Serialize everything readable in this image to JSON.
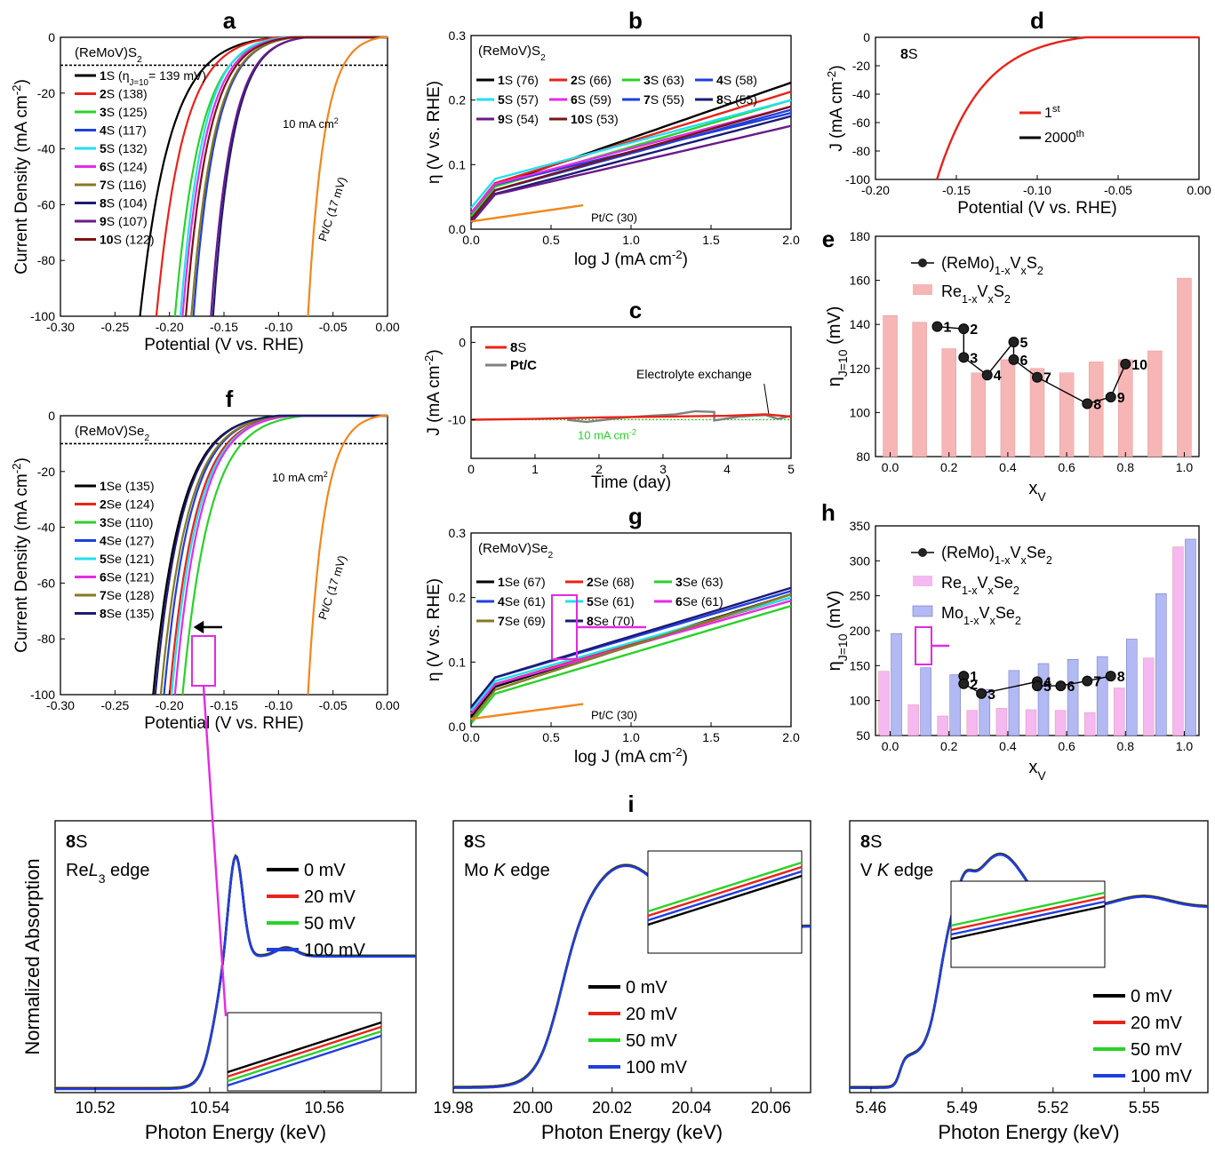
{
  "figure_title": "",
  "colors": {
    "black": "#000000",
    "red": "#e8231a",
    "green": "#29d229",
    "blue": "#1f3fe0",
    "cyan": "#20e0ef",
    "magenta": "#e62be6",
    "olive": "#857a22",
    "navy": "#1b1b73",
    "purple": "#6a1a8a",
    "maroon": "#7a1414",
    "orange": "#f2861c",
    "gray": "#808080",
    "bar_pink": "#f6b6b6",
    "bar_violet": "#f5b8f0",
    "bar_blue": "#b3b9f2"
  },
  "chart_data": [
    {
      "id": "a",
      "panel_label": "a",
      "type": "line",
      "header": "(ReMoV)S",
      "header_sub": "2",
      "xlabel": "Potential (V vs. RHE)",
      "ylabel": "Current Density (mA cm",
      "ylabel_sup": "-2",
      "ylabel_tail": ")",
      "xlim": [
        -0.3,
        0.0
      ],
      "ylim": [
        -100,
        0
      ],
      "xticks": [
        "-0.30",
        "-0.25",
        "-0.20",
        "-0.15",
        "-0.10",
        "-0.05",
        "0.00"
      ],
      "yticks": [
        "-100",
        "-80",
        "-60",
        "-40",
        "-20",
        "0"
      ],
      "ref_line_label": "10 mA cm",
      "ref_line_label_sup": "2",
      "ref_curve_label": "Pt/C (17 mV)",
      "legend_first_note": "(η",
      "legend_first_note_sub": "J=10",
      "legend_first_note_tail": "= 139 mV)",
      "series": [
        {
          "name": "1",
          "suffix": "S",
          "note": "",
          "color": "black",
          "onset": -0.1,
          "x100": -0.227
        },
        {
          "name": "2",
          "suffix": "S",
          "note": "(138)",
          "color": "red",
          "onset": -0.1,
          "x100": -0.212
        },
        {
          "name": "3",
          "suffix": "S",
          "note": "(125)",
          "color": "green",
          "onset": -0.09,
          "x100": -0.195
        },
        {
          "name": "4",
          "suffix": "S",
          "note": "(117)",
          "color": "blue",
          "onset": -0.085,
          "x100": -0.178
        },
        {
          "name": "5",
          "suffix": "S",
          "note": "(132)",
          "color": "cyan",
          "onset": -0.095,
          "x100": -0.19
        },
        {
          "name": "6",
          "suffix": "S",
          "note": "(124)",
          "color": "magenta",
          "onset": -0.09,
          "x100": -0.188
        },
        {
          "name": "7",
          "suffix": "S",
          "note": "(116)",
          "color": "olive",
          "onset": -0.085,
          "x100": -0.18
        },
        {
          "name": "8",
          "suffix": "S",
          "note": "(104)",
          "color": "navy",
          "onset": -0.075,
          "x100": -0.16
        },
        {
          "name": "9",
          "suffix": "S",
          "note": "(107)",
          "color": "purple",
          "onset": -0.075,
          "x100": -0.162
        },
        {
          "name": "10",
          "suffix": "S",
          "note": "(122)",
          "color": "maroon",
          "onset": -0.088,
          "x100": -0.185
        },
        {
          "name": "Pt/C",
          "suffix": "",
          "note": "",
          "color": "orange",
          "onset": -0.005,
          "x100": -0.073
        }
      ]
    },
    {
      "id": "b",
      "panel_label": "b",
      "type": "line",
      "header": "(ReMoV)S",
      "header_sub": "2",
      "xlabel": "log J (mA cm",
      "xlabel_sup": "-2",
      "xlabel_tail": ")",
      "ylabel": "η (V vs. RHE)",
      "xlim": [
        0.0,
        2.0
      ],
      "ylim": [
        0.0,
        0.3
      ],
      "xticks": [
        "0.0",
        "0.5",
        "1.0",
        "1.5",
        "2.0"
      ],
      "yticks": [
        "0.0",
        "0.1",
        "0.2",
        "0.3"
      ],
      "ref_curve_label": "Pt/C (30)",
      "series": [
        {
          "name": "1",
          "suffix": "S",
          "note": "(76)",
          "color": "black",
          "y0": 0.055,
          "y2": 0.227
        },
        {
          "name": "2",
          "suffix": "S",
          "note": "(66)",
          "color": "red",
          "y0": 0.06,
          "y2": 0.213
        },
        {
          "name": "3",
          "suffix": "S",
          "note": "(63)",
          "color": "green",
          "y0": 0.055,
          "y2": 0.2
        },
        {
          "name": "4",
          "suffix": "S",
          "note": "(58)",
          "color": "blue",
          "y0": 0.06,
          "y2": 0.18
        },
        {
          "name": "5",
          "suffix": "S",
          "note": "(57)",
          "color": "cyan",
          "y0": 0.068,
          "y2": 0.2
        },
        {
          "name": "6",
          "suffix": "S",
          "note": "(59)",
          "color": "magenta",
          "y0": 0.06,
          "y2": 0.19
        },
        {
          "name": "7",
          "suffix": "S",
          "note": "(55)",
          "color": "blue",
          "y0": 0.05,
          "y2": 0.185
        },
        {
          "name": "8",
          "suffix": "S",
          "note": "(55)",
          "color": "navy",
          "y0": 0.045,
          "y2": 0.175
        },
        {
          "name": "9",
          "suffix": "S",
          "note": "(54)",
          "color": "purple",
          "y0": 0.045,
          "y2": 0.16
        },
        {
          "name": "10",
          "suffix": "S",
          "note": "(53)",
          "color": "maroon",
          "y0": 0.05,
          "y2": 0.19
        },
        {
          "name": "Pt/C",
          "suffix": "",
          "note": "",
          "color": "orange",
          "x": [
            0.0,
            0.7
          ],
          "y": [
            0.012,
            0.037
          ]
        }
      ]
    },
    {
      "id": "c",
      "panel_label": "c",
      "type": "line",
      "xlabel": "Time (day)",
      "ylabel": "J (mA cm",
      "ylabel_sup": "-2",
      "ylabel_tail": ")",
      "xlim": [
        0,
        5
      ],
      "ylim": [
        -15,
        2
      ],
      "xticks": [
        "0",
        "1",
        "2",
        "3",
        "4",
        "5"
      ],
      "yticks": [
        "-10",
        "0"
      ],
      "annotation": "Electrolyte exchange",
      "ref_line_label": "10 mA cm",
      "ref_line_label_sup": "-2",
      "series": [
        {
          "name": "8",
          "suffix": "S",
          "color": "red",
          "x": [
            0,
            1,
            2,
            3,
            4,
            4.6,
            5
          ],
          "y": [
            -10,
            -9.9,
            -9.7,
            -9.6,
            -9.5,
            -9.3,
            -9.6
          ]
        },
        {
          "name": "Pt/C",
          "suffix": "",
          "color": "gray",
          "x": [
            1.5,
            1.8,
            2.1,
            2.4,
            2.8,
            3.2,
            3.5,
            3.8,
            3.8,
            4.2,
            4.6,
            4.8,
            5
          ],
          "y": [
            -10,
            -10.3,
            -10,
            -9.7,
            -9.5,
            -9.3,
            -8.9,
            -9.0,
            -10.1,
            -9.6,
            -9.4,
            -9.9,
            -9.5
          ]
        }
      ]
    },
    {
      "id": "d",
      "panel_label": "d",
      "type": "line",
      "header": "8",
      "header_suffix": "S",
      "xlabel": "Potential (V vs. RHE)",
      "ylabel": "J (mA cm",
      "ylabel_sup": "-2",
      "ylabel_tail": ")",
      "xlim": [
        -0.2,
        0.0
      ],
      "ylim": [
        -100,
        0
      ],
      "xticks": [
        "-0.20",
        "-0.15",
        "-0.10",
        "-0.05",
        "0.00"
      ],
      "yticks": [
        "-100",
        "-80",
        "-60",
        "-40",
        "-20",
        "0"
      ],
      "series": [
        {
          "name": "1",
          "sup": "st",
          "color": "red",
          "onset": -0.07,
          "x100": -0.162
        },
        {
          "name": "2000",
          "sup": "th",
          "color": "black",
          "onset": -0.07,
          "x100": -0.162
        }
      ]
    },
    {
      "id": "e",
      "panel_label": "e",
      "type": "bar",
      "xlabel": "x",
      "xlabel_sub": "V",
      "ylabel": "η",
      "ylabel_sub": "J=10",
      "ylabel_tail": " (mV)",
      "xlim": [
        -0.05,
        1.05
      ],
      "ylim": [
        80,
        180
      ],
      "xticks": [
        "0.0",
        "0.2",
        "0.4",
        "0.6",
        "0.8",
        "1.0"
      ],
      "yticks": [
        "80",
        "100",
        "120",
        "140",
        "160",
        "180"
      ],
      "legend_line": {
        "text": "(ReMo)",
        "sub": "1-x",
        "mid": "V",
        "sub2": "x",
        "tail": "S",
        "sub3": "2"
      },
      "legend_bar": {
        "text": "Re",
        "sub": "1-x",
        "mid": "V",
        "sub2": "x",
        "tail": "S",
        "sub3": "2"
      },
      "bars": {
        "x": [
          0.0,
          0.1,
          0.2,
          0.3,
          0.4,
          0.5,
          0.6,
          0.7,
          0.8,
          0.9,
          1.0
        ],
        "y": [
          144,
          141,
          129,
          118,
          124,
          120,
          118,
          123,
          124,
          128,
          161
        ]
      },
      "points": [
        {
          "label": "1",
          "x": 0.16,
          "y": 139
        },
        {
          "label": "2",
          "x": 0.25,
          "y": 138
        },
        {
          "label": "3",
          "x": 0.25,
          "y": 125
        },
        {
          "label": "4",
          "x": 0.33,
          "y": 117
        },
        {
          "label": "5",
          "x": 0.42,
          "y": 132
        },
        {
          "label": "6",
          "x": 0.42,
          "y": 124
        },
        {
          "label": "7",
          "x": 0.5,
          "y": 116
        },
        {
          "label": "8",
          "x": 0.67,
          "y": 104
        },
        {
          "label": "9",
          "x": 0.75,
          "y": 107
        },
        {
          "label": "10",
          "x": 0.8,
          "y": 122
        }
      ]
    },
    {
      "id": "f",
      "panel_label": "f",
      "type": "line",
      "header": "(ReMoV)Se",
      "header_sub": "2",
      "xlabel": "Potential (V vs. RHE)",
      "ylabel": "Current Density (mA cm",
      "ylabel_sup": "-2",
      "ylabel_tail": ")",
      "xlim": [
        -0.3,
        0.0
      ],
      "ylim": [
        -100,
        0
      ],
      "xticks": [
        "-0.30",
        "-0.25",
        "-0.20",
        "-0.15",
        "-0.10",
        "-0.05",
        "0.00"
      ],
      "yticks": [
        "-100",
        "-80",
        "-60",
        "-40",
        "-20",
        "0"
      ],
      "ref_line_label": "10 mA cm",
      "ref_line_label_sup": "2",
      "ref_curve_label": "Pt/C (17 mV)",
      "series": [
        {
          "name": "1",
          "suffix": "Se",
          "note": "(135)",
          "color": "black",
          "onset": -0.1,
          "x100": -0.215
        },
        {
          "name": "2",
          "suffix": "Se",
          "note": "(124)",
          "color": "red",
          "onset": -0.09,
          "x100": -0.2
        },
        {
          "name": "3",
          "suffix": "Se",
          "note": "(110)",
          "color": "green",
          "onset": -0.075,
          "x100": -0.188
        },
        {
          "name": "4",
          "suffix": "Se",
          "note": "(127)",
          "color": "blue",
          "onset": -0.095,
          "x100": -0.205
        },
        {
          "name": "5",
          "suffix": "Se",
          "note": "(121)",
          "color": "cyan",
          "onset": -0.088,
          "x100": -0.198
        },
        {
          "name": "6",
          "suffix": "Se",
          "note": "(121)",
          "color": "magenta",
          "onset": -0.088,
          "x100": -0.195
        },
        {
          "name": "7",
          "suffix": "Se",
          "note": "(128)",
          "color": "olive",
          "onset": -0.095,
          "x100": -0.208
        },
        {
          "name": "8",
          "suffix": "Se",
          "note": "(135)",
          "color": "navy",
          "onset": -0.1,
          "x100": -0.213
        },
        {
          "name": "Pt/C",
          "suffix": "",
          "note": "",
          "color": "orange",
          "onset": -0.005,
          "x100": -0.073
        }
      ]
    },
    {
      "id": "g",
      "panel_label": "g",
      "type": "line",
      "header": "(ReMoV)Se",
      "header_sub": "2",
      "xlabel": "log J (mA cm",
      "xlabel_sup": "-2",
      "xlabel_tail": ")",
      "ylabel": "η (V vs. RHE)",
      "xlim": [
        0.0,
        2.0
      ],
      "ylim": [
        0.0,
        0.3
      ],
      "xticks": [
        "0.0",
        "0.5",
        "1.0",
        "1.5",
        "2.0"
      ],
      "yticks": [
        "0.0",
        "0.1",
        "0.2",
        "0.3"
      ],
      "ref_curve_label": "Pt/C (30)",
      "series": [
        {
          "name": "1",
          "suffix": "Se",
          "note": "(67)",
          "color": "black",
          "y0": 0.05,
          "y2": 0.205
        },
        {
          "name": "2",
          "suffix": "Se",
          "note": "(68)",
          "color": "red",
          "y0": 0.055,
          "y2": 0.2
        },
        {
          "name": "3",
          "suffix": "Se",
          "note": "(63)",
          "color": "green",
          "y0": 0.04,
          "y2": 0.187
        },
        {
          "name": "4",
          "suffix": "Se",
          "note": "(61)",
          "color": "blue",
          "y0": 0.065,
          "y2": 0.21
        },
        {
          "name": "5",
          "suffix": "Se",
          "note": "(61)",
          "color": "cyan",
          "y0": 0.06,
          "y2": 0.2
        },
        {
          "name": "6",
          "suffix": "Se",
          "note": "(61)",
          "color": "magenta",
          "y0": 0.055,
          "y2": 0.195
        },
        {
          "name": "7",
          "suffix": "Se",
          "note": "(69)",
          "color": "olive",
          "y0": 0.045,
          "y2": 0.205
        },
        {
          "name": "8",
          "suffix": "Se",
          "note": "(70)",
          "color": "navy",
          "y0": 0.065,
          "y2": 0.215
        },
        {
          "name": "Pt/C",
          "suffix": "",
          "note": "",
          "color": "orange",
          "x": [
            0.0,
            0.7
          ],
          "y": [
            0.012,
            0.035
          ]
        }
      ]
    },
    {
      "id": "h",
      "panel_label": "h",
      "type": "bar",
      "xlabel": "x",
      "xlabel_sub": "V",
      "ylabel": "η",
      "ylabel_sub": "J=10",
      "ylabel_tail": " (mV)",
      "xlim": [
        -0.05,
        1.05
      ],
      "ylim": [
        50,
        350
      ],
      "xticks": [
        "0.0",
        "0.2",
        "0.4",
        "0.6",
        "0.8",
        "1.0"
      ],
      "yticks": [
        "50",
        "100",
        "150",
        "200",
        "250",
        "300",
        "350"
      ],
      "legend_line": {
        "text": "(ReMo)",
        "sub": "1-x",
        "mid": "V",
        "sub2": "x",
        "tail": "Se",
        "sub3": "2"
      },
      "legend_bar": {
        "text": "Re",
        "sub": "1-x",
        "mid": "V",
        "sub2": "x",
        "tail": "Se",
        "sub3": "2"
      },
      "legend_bar2": {
        "text": "Mo",
        "sub": "1-x",
        "mid": "V",
        "sub2": "x",
        "tail": "Se",
        "sub3": "2"
      },
      "bars": {
        "x": [
          0.0,
          0.1,
          0.2,
          0.3,
          0.4,
          0.5,
          0.6,
          0.7,
          0.8,
          0.9,
          1.0
        ],
        "y": [
          142,
          94,
          78,
          86,
          89,
          87,
          86,
          83,
          118,
          161,
          320
        ]
      },
      "bars2": {
        "x": [
          0.0,
          0.1,
          0.2,
          0.3,
          0.4,
          0.5,
          0.6,
          0.7,
          0.8,
          0.9,
          1.0
        ],
        "y": [
          196,
          147,
          137,
          116,
          143,
          153,
          159,
          163,
          188,
          253,
          331
        ]
      },
      "points": [
        {
          "label": "1",
          "x": 0.25,
          "y": 135
        },
        {
          "label": "2",
          "x": 0.25,
          "y": 124
        },
        {
          "label": "3",
          "x": 0.31,
          "y": 110
        },
        {
          "label": "4",
          "x": 0.5,
          "y": 127
        },
        {
          "label": "5",
          "x": 0.5,
          "y": 121
        },
        {
          "label": "6",
          "x": 0.58,
          "y": 121
        },
        {
          "label": "7",
          "x": 0.67,
          "y": 128
        },
        {
          "label": "8",
          "x": 0.75,
          "y": 135
        }
      ]
    },
    {
      "id": "i1",
      "panel_label": "i",
      "type": "line",
      "header": "8",
      "header_suffix": "S",
      "edge_label": "Re",
      "edge_italic": "L",
      "edge_sub": "3",
      "edge_tail": " edge",
      "xlabel": "Photon Energy (keV)",
      "ylabel": "Normalized Absorption",
      "xlim": [
        10.513,
        10.576
      ],
      "xticks": [
        "10.52",
        "10.54",
        "10.56"
      ],
      "series": [
        {
          "name": "0 mV",
          "color": "black"
        },
        {
          "name": "20 mV",
          "color": "red"
        },
        {
          "name": "50 mV",
          "color": "green"
        },
        {
          "name": "100 mV",
          "color": "blue"
        }
      ]
    },
    {
      "id": "i2",
      "panel_label": "",
      "type": "line",
      "header": "8",
      "header_suffix": "S",
      "edge_label": "Mo ",
      "edge_italic": "K",
      "edge_sub": "",
      "edge_tail": " edge",
      "xlabel": "Photon Energy (keV)",
      "xlim": [
        19.98,
        20.07
      ],
      "xticks": [
        "19.98",
        "20.00",
        "20.02",
        "20.04",
        "20.06"
      ],
      "series": [
        {
          "name": "0 mV",
          "color": "black"
        },
        {
          "name": "20 mV",
          "color": "red"
        },
        {
          "name": "50 mV",
          "color": "green"
        },
        {
          "name": "100 mV",
          "color": "blue"
        }
      ]
    },
    {
      "id": "i3",
      "panel_label": "",
      "type": "line",
      "header": "8",
      "header_suffix": "S",
      "edge_label": "V ",
      "edge_italic": "K",
      "edge_sub": "",
      "edge_tail": " edge",
      "xlabel": "Photon Energy (keV)",
      "xlim": [
        5.453,
        5.571
      ],
      "xticks": [
        "5.46",
        "5.49",
        "5.52",
        "5.55"
      ],
      "series": [
        {
          "name": "0 mV",
          "color": "black"
        },
        {
          "name": "20 mV",
          "color": "red"
        },
        {
          "name": "50 mV",
          "color": "green"
        },
        {
          "name": "100 mV",
          "color": "blue"
        }
      ]
    }
  ]
}
